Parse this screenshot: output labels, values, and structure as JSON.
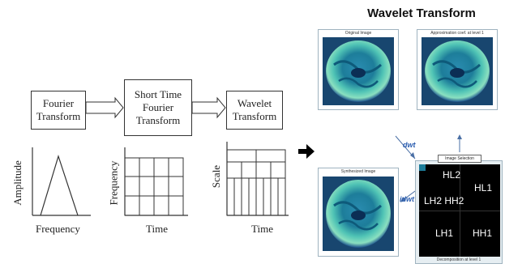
{
  "title": "Wavelet Transform",
  "boxes": {
    "fourier": "Fourier\nTransform",
    "stft": "Short Time\nFourier\nTransform",
    "wavelet": "Wavelet\nTransform"
  },
  "plots": {
    "p1": {
      "ylabel": "Amplitude",
      "xlabel": "Frequency"
    },
    "p2": {
      "ylabel": "Frequency",
      "xlabel": "Time"
    },
    "p3": {
      "ylabel": "Scale",
      "xlabel": "Time"
    }
  },
  "panels": {
    "original": "Original Image",
    "approx": "Approximation coef. at level 1",
    "synth": "Synthesized Image",
    "decomp": "Decomposition at level 1",
    "selection": "Image Selection"
  },
  "ops": {
    "dwt": "dwt",
    "idwt": "idwt"
  },
  "tiles": {
    "hl2": "HL2",
    "hl1": "HL1",
    "lh2hh2": "LH2 HH2",
    "lh1": "LH1",
    "hh1": "HH1"
  },
  "colors": {
    "brain": "#1d7d9a",
    "brain_light": "#6ed7c2",
    "panel_bg": "#e6eef2",
    "tile_bg": "#000000"
  }
}
